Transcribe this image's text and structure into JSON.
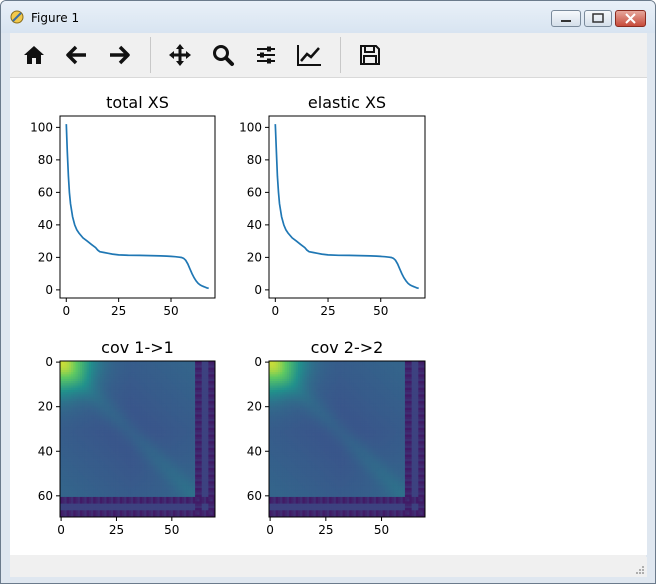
{
  "window": {
    "title": "Figure 1"
  },
  "toolbar": {
    "buttons": [
      {
        "icon": "home-icon"
      },
      {
        "icon": "arrow-left-icon"
      },
      {
        "icon": "arrow-right-icon"
      },
      {
        "icon": "move-icon"
      },
      {
        "icon": "zoom-icon"
      },
      {
        "icon": "sliders-icon"
      },
      {
        "icon": "line-chart-icon"
      },
      {
        "icon": "save-icon"
      }
    ]
  },
  "colors": {
    "line": "#1f77b4"
  },
  "chart_data": [
    {
      "type": "line",
      "title": "total XS",
      "xticks": [
        "0",
        "25",
        "50"
      ],
      "yticks": [
        "0",
        "20",
        "40",
        "60",
        "80",
        "100"
      ],
      "xlim": [
        -3,
        71
      ],
      "ylim": [
        -5,
        107
      ],
      "x": [
        0,
        0.5,
        1,
        1.5,
        2,
        3,
        4,
        5,
        6,
        8,
        10,
        12,
        14,
        15,
        16,
        18,
        20,
        22,
        25,
        30,
        35,
        40,
        45,
        48,
        50,
        52,
        54,
        55,
        56,
        57,
        58,
        59,
        60,
        61,
        62,
        63,
        64,
        65,
        66,
        67,
        68
      ],
      "y": [
        102,
        85,
        70,
        60,
        53,
        45,
        40,
        37,
        35,
        32,
        30,
        28,
        26,
        24.5,
        23.5,
        23,
        22.5,
        22,
        21.5,
        21.3,
        21.2,
        21.1,
        20.9,
        20.8,
        20.6,
        20.4,
        20.1,
        19.9,
        19.4,
        18.2,
        16,
        13,
        10,
        7.5,
        5.5,
        4,
        3,
        2.3,
        1.8,
        1.3,
        1
      ]
    },
    {
      "type": "line",
      "title": "elastic XS",
      "xticks": [
        "0",
        "25",
        "50"
      ],
      "yticks": [
        "0",
        "20",
        "40",
        "60",
        "80",
        "100"
      ],
      "xlim": [
        -3,
        71
      ],
      "ylim": [
        -5,
        107
      ],
      "x": [
        0,
        0.5,
        1,
        1.5,
        2,
        3,
        4,
        5,
        6,
        8,
        10,
        12,
        14,
        15,
        16,
        18,
        20,
        22,
        25,
        30,
        35,
        40,
        45,
        48,
        50,
        52,
        54,
        55,
        56,
        57,
        58,
        59,
        60,
        61,
        62,
        63,
        64,
        65,
        66,
        67,
        68
      ],
      "y": [
        102,
        85,
        70,
        60,
        53,
        45,
        40,
        37,
        35,
        32,
        30,
        28,
        26,
        24.5,
        23.5,
        23,
        22.5,
        22,
        21.5,
        21.3,
        21.2,
        21.1,
        20.9,
        20.8,
        20.6,
        20.4,
        20.1,
        19.9,
        19.4,
        18.2,
        16,
        13,
        10,
        7.5,
        5.5,
        4,
        3,
        2.3,
        1.8,
        1.3,
        1
      ]
    },
    {
      "type": "heatmap",
      "title": "cov 1->1",
      "xticks": [
        "0",
        "25",
        "50"
      ],
      "yticks": [
        "0",
        "20",
        "40",
        "60"
      ],
      "size": 70
    },
    {
      "type": "heatmap",
      "title": "cov 2->2",
      "xticks": [
        "0",
        "25",
        "50"
      ],
      "yticks": [
        "0",
        "20",
        "40",
        "60"
      ],
      "size": 70
    }
  ]
}
